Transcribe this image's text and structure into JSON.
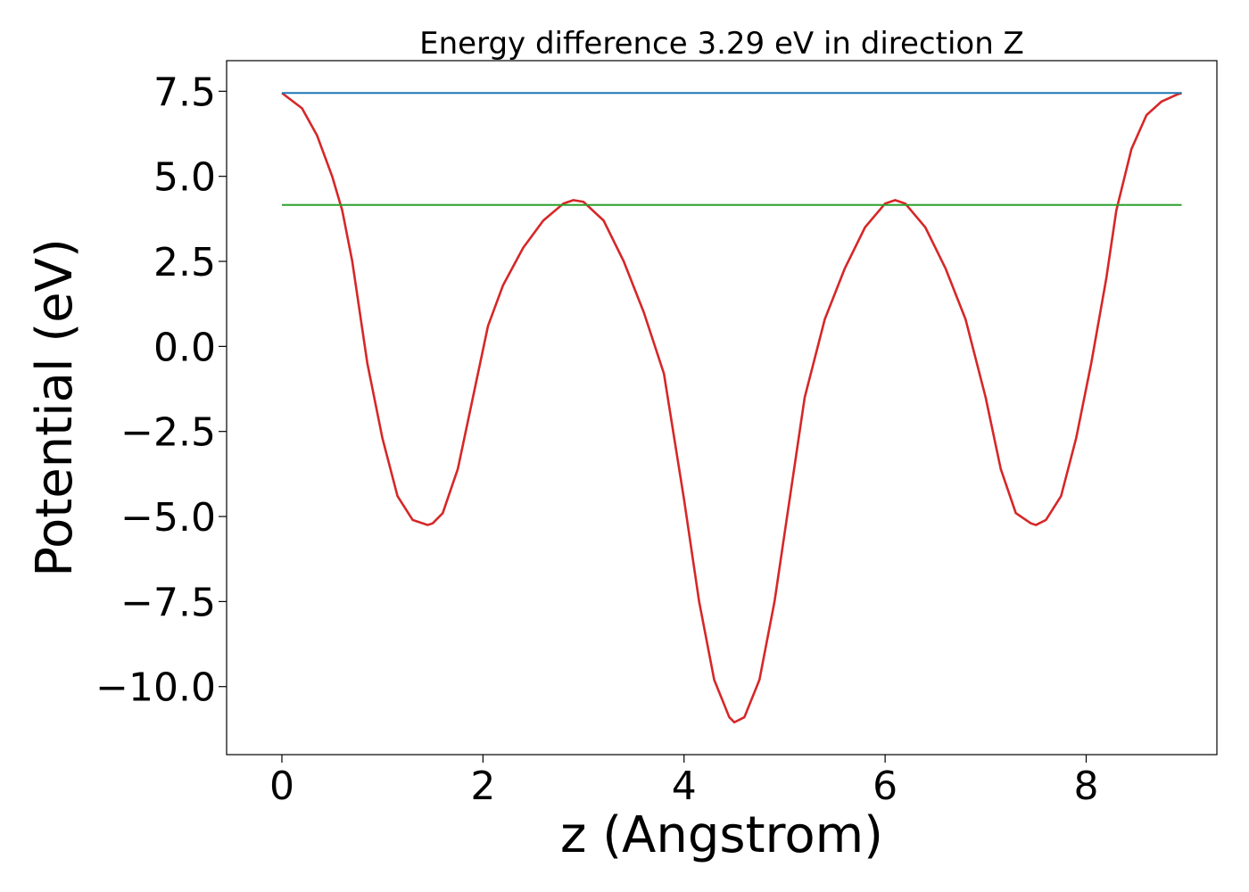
{
  "chart_data": {
    "type": "line",
    "title": "Energy difference 3.29 eV in direction Z",
    "xlabel": "z (Angstrom)",
    "ylabel": "Potential (eV)",
    "xlim": [
      -0.55,
      9.3
    ],
    "ylim": [
      -12.0,
      8.4
    ],
    "grid": false,
    "x_ticks": [
      0,
      2,
      4,
      6,
      8
    ],
    "x_tick_labels": [
      "0",
      "2",
      "4",
      "6",
      "8"
    ],
    "y_ticks": [
      7.5,
      5.0,
      2.5,
      0.0,
      -2.5,
      -5.0,
      -7.5,
      -10.0
    ],
    "y_tick_labels": [
      "7.5",
      "5.0",
      "2.5",
      "0.0",
      "−2.5",
      "−5.0",
      "−7.5",
      "−10.0"
    ],
    "series": [
      {
        "color": "#d62728",
        "x": [
          0.0,
          0.2,
          0.35,
          0.5,
          0.6,
          0.7,
          0.85,
          1.0,
          1.15,
          1.3,
          1.45,
          1.5,
          1.6,
          1.75,
          1.9,
          2.05,
          2.2,
          2.4,
          2.6,
          2.8,
          2.9,
          3.0,
          3.2,
          3.4,
          3.6,
          3.8,
          4.0,
          4.15,
          4.3,
          4.45,
          4.5,
          4.6,
          4.75,
          4.9,
          5.05,
          5.2,
          5.4,
          5.6,
          5.8,
          6.0,
          6.1,
          6.2,
          6.4,
          6.6,
          6.8,
          7.0,
          7.15,
          7.3,
          7.45,
          7.5,
          7.6,
          7.75,
          7.9,
          8.05,
          8.2,
          8.3,
          8.45,
          8.6,
          8.75,
          8.9,
          8.95
        ],
        "y": [
          7.45,
          7.0,
          6.2,
          5.0,
          4.0,
          2.5,
          -0.5,
          -2.7,
          -4.4,
          -5.1,
          -5.25,
          -5.2,
          -4.9,
          -3.6,
          -1.5,
          0.6,
          1.8,
          2.9,
          3.7,
          4.2,
          4.3,
          4.25,
          3.7,
          2.5,
          1.0,
          -0.8,
          -4.5,
          -7.5,
          -9.8,
          -10.9,
          -11.05,
          -10.9,
          -9.8,
          -7.5,
          -4.5,
          -1.5,
          0.8,
          2.3,
          3.5,
          4.2,
          4.3,
          4.2,
          3.5,
          2.3,
          0.8,
          -1.5,
          -3.6,
          -4.9,
          -5.2,
          -5.25,
          -5.1,
          -4.4,
          -2.7,
          -0.5,
          2.0,
          4.0,
          5.8,
          6.8,
          7.2,
          7.4,
          7.45
        ]
      },
      {
        "color": "#1f77b4",
        "x": [
          0.0,
          8.95
        ],
        "y": [
          7.45,
          7.45
        ]
      },
      {
        "color": "#2ca02c",
        "x": [
          0.0,
          8.95
        ],
        "y": [
          4.16,
          4.16
        ]
      }
    ]
  }
}
